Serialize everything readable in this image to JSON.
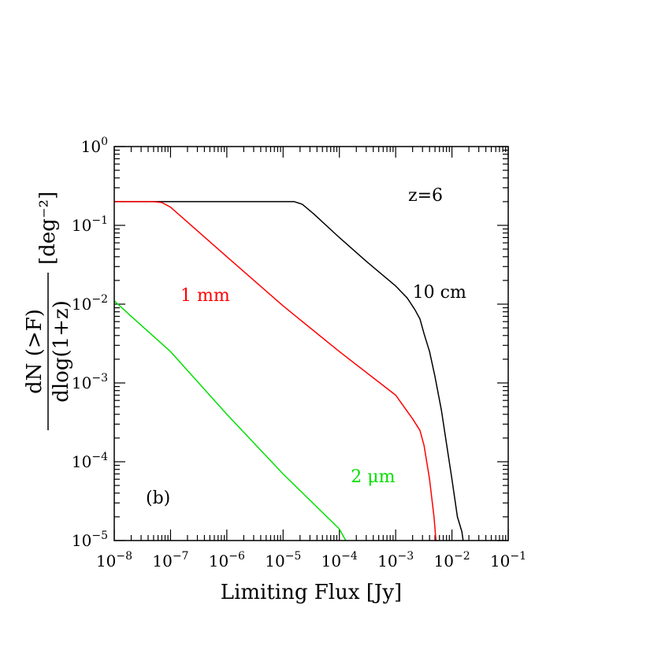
{
  "chart_data": {
    "type": "line",
    "xlabel": "Limiting Flux [Jy]",
    "ylabel": {
      "numerator": "dN (>F)",
      "denominator": "dlog(1+z)",
      "unit": "[deg⁻²]"
    },
    "xscale": "log",
    "yscale": "log",
    "xlim": [
      1e-08,
      0.1
    ],
    "ylim": [
      1e-05,
      1
    ],
    "xticks": [
      {
        "value": 1e-08,
        "base": "10",
        "exp": "−8"
      },
      {
        "value": 1e-07,
        "base": "10",
        "exp": "−7"
      },
      {
        "value": 1e-06,
        "base": "10",
        "exp": "−6"
      },
      {
        "value": 1e-05,
        "base": "10",
        "exp": "−5"
      },
      {
        "value": 0.0001,
        "base": "10",
        "exp": "−4"
      },
      {
        "value": 0.001,
        "base": "10",
        "exp": "−3"
      },
      {
        "value": 0.01,
        "base": "10",
        "exp": "−2"
      },
      {
        "value": 0.1,
        "base": "10",
        "exp": "−1"
      }
    ],
    "yticks": [
      {
        "value": 1e-05,
        "base": "10",
        "exp": "−5"
      },
      {
        "value": 0.0001,
        "base": "10",
        "exp": "−4"
      },
      {
        "value": 0.001,
        "base": "10",
        "exp": "−3"
      },
      {
        "value": 0.01,
        "base": "10",
        "exp": "−2"
      },
      {
        "value": 0.1,
        "base": "10",
        "exp": "−1"
      },
      {
        "value": 1,
        "base": "10",
        "exp": "0"
      }
    ],
    "annotations": {
      "redshift": "z=6",
      "panel": "(b)"
    },
    "series": [
      {
        "name": "10 cm",
        "color": "#000000",
        "label_at": [
          0.002,
          0.012
        ],
        "x": [
          1e-08,
          1e-07,
          1e-06,
          1e-05,
          1.58e-05,
          2.2e-05,
          3.5e-05,
          0.0001,
          0.0003,
          0.001,
          0.0016,
          0.0022,
          0.0027,
          0.0032,
          0.004,
          0.005,
          0.0065,
          0.008,
          0.01,
          0.0125,
          0.015,
          0.0158
        ],
        "y": [
          0.2,
          0.2,
          0.2,
          0.2,
          0.2,
          0.185,
          0.14,
          0.07,
          0.035,
          0.017,
          0.012,
          0.0085,
          0.0065,
          0.0042,
          0.0025,
          0.0012,
          0.00045,
          0.00017,
          6e-05,
          2e-05,
          1.3e-05,
          1e-05
        ]
      },
      {
        "name": "1 mm",
        "color": "#ff0000",
        "label_at": [
          1.5e-07,
          0.011
        ],
        "x": [
          1e-08,
          5e-08,
          7e-08,
          1e-07,
          1e-06,
          1e-05,
          0.0001,
          0.001,
          0.002,
          0.0027,
          0.0032,
          0.004,
          0.0048,
          0.0052,
          0.0055
        ],
        "y": [
          0.2,
          0.2,
          0.195,
          0.17,
          0.04,
          0.0095,
          0.0025,
          0.0007,
          0.00035,
          0.00025,
          0.00016,
          6e-05,
          2e-05,
          1e-05,
          1e-05
        ]
      },
      {
        "name": "2 μm",
        "color": "#00e000",
        "label_at": [
          0.00016,
          5.5e-05
        ],
        "x": [
          1e-08,
          2e-08,
          1e-07,
          1e-06,
          1e-05,
          0.0001,
          0.00013
        ],
        "y": [
          0.011,
          0.007,
          0.0025,
          0.0004,
          7e-05,
          1.4e-05,
          1e-05
        ]
      }
    ]
  }
}
